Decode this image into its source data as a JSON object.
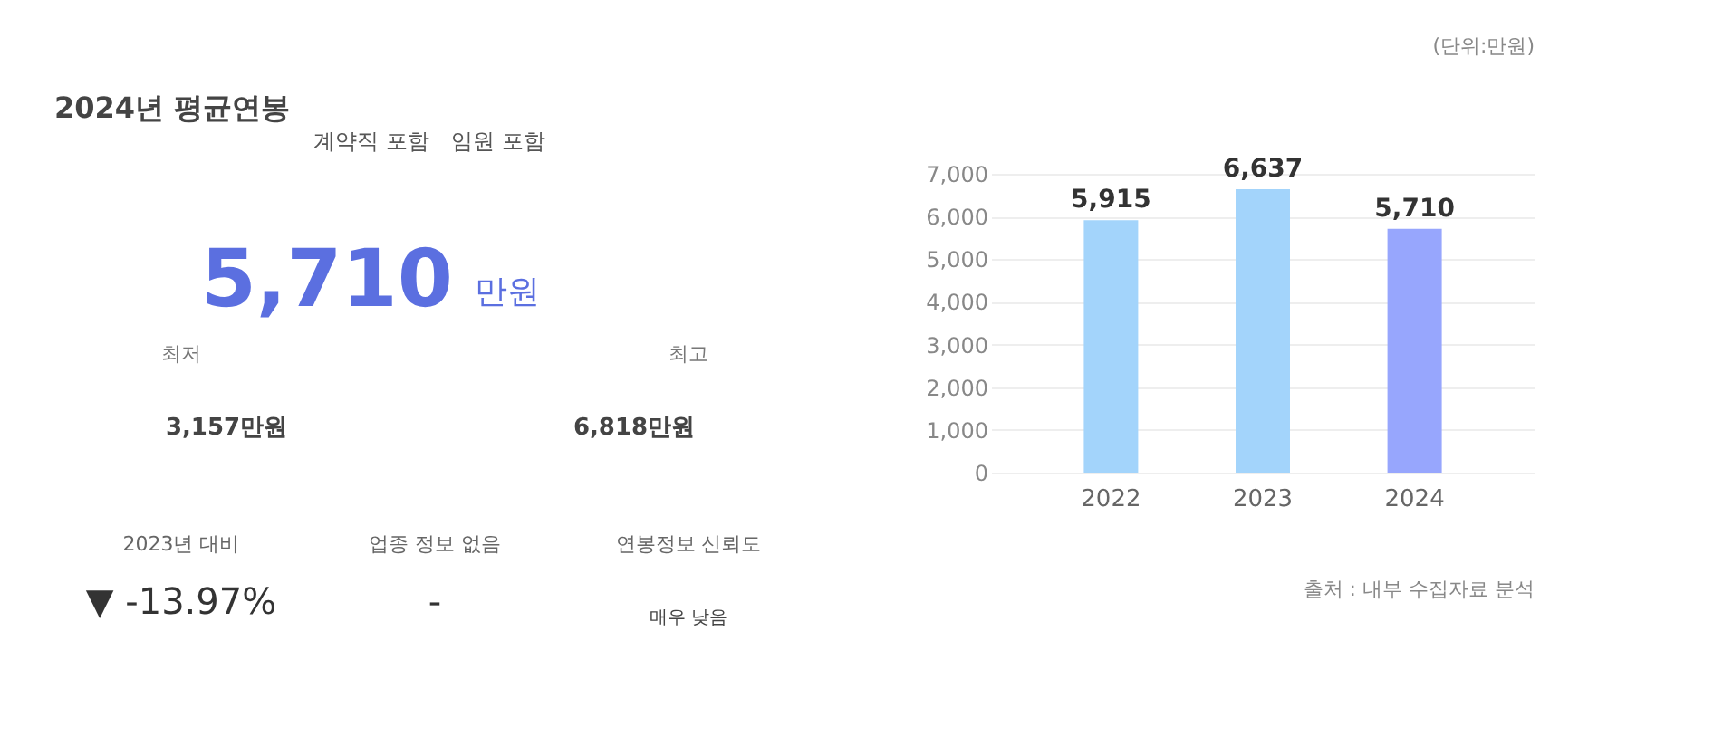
{
  "chart_data": [
    {
      "type": "other",
      "title": "2024년 평균연봉",
      "annotations": [
        "계약직 포함",
        "임원 포함",
        "5,710",
        "만원",
        "최저",
        "최고",
        "3,157만원",
        "6,818만원",
        "2023년 대비",
        "▼ -13.97%",
        "업종 정보 없음",
        "-",
        "연봉정보 신뢰도",
        "매우 낮음"
      ]
    },
    {
      "type": "bar",
      "categories": [
        "2022",
        "2023",
        "2024"
      ],
      "values": [
        5915,
        6637,
        5710
      ],
      "colors": [
        "#a3d4fb",
        "#a3d4fb",
        "#97a6fd"
      ],
      "value_labels": [
        "5,915",
        "6,637",
        "5,710"
      ],
      "ylim": [
        0,
        7000
      ],
      "yticks": [
        0,
        {
          "value": 1000,
          "label": "1,000"
        },
        {
          "value": 2000,
          "label": "2,000"
        },
        {
          "value": 3000,
          "label": "3,000"
        },
        {
          "value": 4000,
          "label": "4,000"
        },
        {
          "value": 5000,
          "label": "5,000"
        },
        {
          "value": 6000,
          "label": "6,000"
        },
        {
          "value": 7000,
          "label": "7,000"
        }
      ],
      "grid": "y",
      "legend": false,
      "annotations": [
        "(단위:만원)",
        "출처 : 내부 수집자료 분석"
      ]
    }
  ]
}
